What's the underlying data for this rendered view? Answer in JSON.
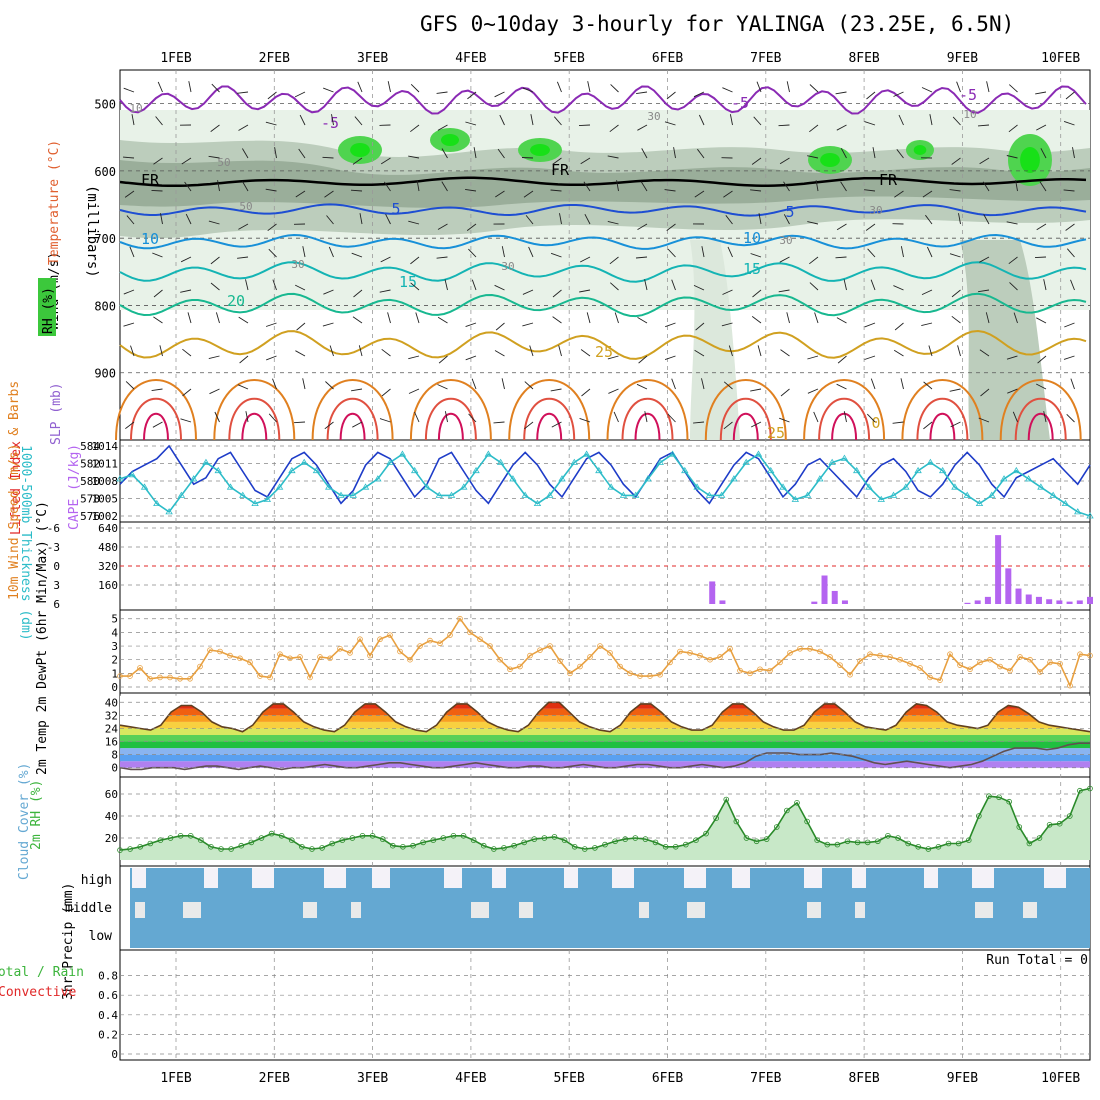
{
  "title": "GFS 0~10day 3-hourly for YALINGA (23.25E, 6.5N)",
  "date_labels": [
    "1FEB",
    "2FEB",
    "3FEB",
    "4FEB",
    "5FEB",
    "6FEB",
    "7FEB",
    "8FEB",
    "9FEB",
    "10FEB"
  ],
  "colors": {
    "rh": "#3cc83c",
    "t_warm": "#e08a1e",
    "t_cool": "#1e64d2",
    "t_cyan": "#14b4c8",
    "freeze": "#000000",
    "slp": "#1e3cc8",
    "thick": "#2cbcc8",
    "li": "#e02828",
    "cape": "#b464f0",
    "wind": "#e8a040",
    "cloud": "#64a8d2",
    "rh2m": "#3cb43c"
  },
  "chart_data": [
    {
      "type": "contour",
      "panel": "upper_air",
      "ylabel_parts": [
        "Wind (m/s)",
        "Temperature (°C)",
        "RH (%)",
        "(millibars)"
      ],
      "y_ticks": [
        500,
        600,
        700,
        800,
        900
      ],
      "ylim": [
        1000,
        450
      ],
      "temperature_contours": [
        -5,
        0,
        5,
        10,
        15,
        20,
        25
      ],
      "contour_labels": [
        "-5",
        "-5",
        "-5",
        "FR",
        "FR",
        "FR",
        "5",
        "5",
        "10",
        "10",
        "15",
        "15",
        "20",
        "25",
        "25",
        "0",
        "30",
        "30",
        "30",
        "30",
        "50",
        "50",
        "10",
        "10",
        "30"
      ],
      "rh_shading": [
        30,
        50,
        70,
        90
      ]
    },
    {
      "type": "line",
      "panel": "thickness_slp",
      "ylabel_left": "1000-500mb Thickness (dm)",
      "ylabel_right": "SLP (mb)",
      "thickness_ticks": [
        576,
        578,
        580,
        582,
        584
      ],
      "slp_ticks": [
        1002,
        1005,
        1008,
        1011,
        1014
      ],
      "series": [
        {
          "name": "SLP",
          "values": [
            1008,
            1010,
            1011,
            1012,
            1014,
            1011,
            1008,
            1009,
            1012,
            1013,
            1010,
            1007,
            1006,
            1009,
            1012,
            1013,
            1011,
            1008,
            1005,
            1007,
            1011,
            1013,
            1012,
            1009,
            1006,
            1008,
            1012,
            1013,
            1010,
            1007,
            1005,
            1008,
            1011,
            1013,
            1011,
            1008,
            1006,
            1009,
            1012,
            1013,
            1011,
            1008,
            1006,
            1009,
            1012,
            1013,
            1010,
            1007,
            1005,
            1008,
            1011,
            1013,
            1012,
            1009,
            1006,
            1008,
            1011,
            1012,
            1010,
            1008,
            1006,
            1009,
            1011,
            1012,
            1010,
            1007,
            1006,
            1008,
            1011,
            1013,
            1011,
            1008,
            1006,
            1009,
            1010,
            1011,
            1012,
            1010,
            1008,
            1011
          ]
        },
        {
          "name": "Thickness",
          "values": [
            580,
            580.5,
            579,
            577,
            576,
            578,
            580,
            582,
            581,
            579,
            578,
            577,
            577.5,
            579,
            581,
            582,
            581,
            579,
            578,
            578,
            579,
            580,
            582,
            583,
            581,
            579,
            578,
            578,
            579,
            581,
            583,
            582,
            580,
            578,
            577,
            578,
            580,
            582,
            583,
            581,
            579,
            578,
            578,
            580,
            582,
            583,
            581,
            579,
            578,
            578,
            580,
            582,
            583,
            581,
            579,
            577.5,
            578,
            580,
            582,
            582.5,
            581,
            579,
            577.5,
            578,
            579,
            581,
            582,
            581,
            579,
            578,
            577,
            578,
            580,
            581,
            580,
            579,
            578,
            577,
            576,
            575.5
          ]
        }
      ]
    },
    {
      "type": "bar",
      "panel": "instability",
      "ylabel_left": "Lifted Index",
      "ylabel_right": "CAPE (J/kg)",
      "li_ticks": [
        "-6",
        "-3",
        "0",
        "3",
        "6"
      ],
      "cape_ticks": [
        160,
        320,
        480,
        640
      ],
      "cape_values": [
        0,
        0,
        0,
        0,
        0,
        0,
        0,
        0,
        0,
        0,
        0,
        0,
        0,
        0,
        0,
        0,
        0,
        0,
        0,
        0,
        0,
        0,
        0,
        0,
        0,
        0,
        0,
        0,
        0,
        0,
        0,
        0,
        0,
        0,
        0,
        0,
        0,
        0,
        0,
        0,
        0,
        0,
        0,
        0,
        0,
        0,
        0,
        0,
        0,
        0,
        0,
        0,
        0,
        0,
        0,
        0,
        0,
        0,
        190,
        30,
        0,
        0,
        0,
        0,
        0,
        0,
        0,
        0,
        20,
        240,
        110,
        30,
        0,
        0,
        0,
        0,
        0,
        0,
        0,
        0,
        0,
        0,
        0,
        10,
        30,
        60,
        580,
        300,
        130,
        80,
        60,
        40,
        30,
        20,
        30,
        60
      ]
    },
    {
      "type": "line",
      "panel": "wind10m",
      "ylabel": "10m Wind Speed (m/s) & Barbs",
      "y_ticks": [
        0,
        1,
        2,
        3,
        4,
        5
      ],
      "series": [
        {
          "name": "Speed",
          "values": [
            0.8,
            0.8,
            1.4,
            0.6,
            0.7,
            0.7,
            0.6,
            0.6,
            1.5,
            2.7,
            2.6,
            2.3,
            2.1,
            1.8,
            0.8,
            0.7,
            2.4,
            2.1,
            2.2,
            0.7,
            2.2,
            2.1,
            2.8,
            2.5,
            3.5,
            2.3,
            3.5,
            3.8,
            2.6,
            2.0,
            3.0,
            3.4,
            3.2,
            3.8,
            5.0,
            4.0,
            3.5,
            3.0,
            2.0,
            1.3,
            1.5,
            2.3,
            2.7,
            3.0,
            1.9,
            1.0,
            1.5,
            2.2,
            3.0,
            2.5,
            1.5,
            1.0,
            0.8,
            0.8,
            0.9,
            1.8,
            2.6,
            2.5,
            2.3,
            2.0,
            2.2,
            2.8,
            1.2,
            1.0,
            1.3,
            1.2,
            1.8,
            2.5,
            2.8,
            2.8,
            2.6,
            2.2,
            1.6,
            0.9,
            1.9,
            2.4,
            2.3,
            2.2,
            2.0,
            1.7,
            1.4,
            0.7,
            0.5,
            2.4,
            1.6,
            1.3,
            1.8,
            2.0,
            1.5,
            1.2,
            2.2,
            2.0,
            1.1,
            1.8,
            1.7,
            0.1,
            2.4,
            2.3
          ]
        }
      ]
    },
    {
      "type": "area",
      "panel": "temperature2m",
      "ylabel": "2m Temp 2m DewPt (6hr Min/Max) (°C)",
      "y_ticks": [
        0,
        8,
        16,
        24,
        32,
        40
      ],
      "series": [
        {
          "name": "2m Temp",
          "values": [
            26,
            25,
            24,
            23,
            26,
            34,
            38,
            38,
            34,
            28,
            25,
            24,
            22,
            26,
            34,
            39,
            39,
            34,
            28,
            25,
            23,
            22,
            26,
            34,
            39,
            39,
            34,
            28,
            25,
            23,
            22,
            26,
            34,
            39,
            39,
            34,
            28,
            25,
            23,
            22,
            26,
            34,
            40,
            40,
            34,
            28,
            25,
            23,
            22,
            26,
            34,
            39,
            39,
            34,
            28,
            25,
            23,
            23,
            26,
            34,
            39,
            39,
            34,
            28,
            25,
            23,
            23,
            26,
            34,
            39,
            39,
            34,
            28,
            25,
            24,
            23,
            26,
            34,
            39,
            38,
            34,
            28,
            26,
            25,
            24,
            26,
            34,
            38,
            37,
            33,
            28,
            26,
            25,
            24,
            23,
            22
          ]
        },
        {
          "name": "2m DewPt",
          "values": [
            0,
            -1,
            -1,
            0,
            0,
            0,
            -1,
            0,
            1,
            1,
            0,
            -1,
            0,
            1,
            0,
            -1,
            0,
            0,
            1,
            2,
            1,
            0,
            0,
            1,
            2,
            3,
            3,
            2,
            1,
            0,
            0,
            1,
            2,
            3,
            2,
            1,
            0,
            0,
            1,
            1,
            0,
            0,
            1,
            2,
            1,
            0,
            0,
            1,
            2,
            2,
            1,
            0,
            0,
            1,
            2,
            1,
            0,
            1,
            3,
            7,
            9,
            9,
            9,
            8,
            8,
            8,
            9,
            8,
            7,
            5,
            3,
            2,
            3,
            4,
            3,
            2,
            1,
            0,
            1,
            2,
            4,
            7,
            10,
            12,
            12,
            12,
            11,
            12,
            14,
            15,
            15
          ]
        }
      ]
    },
    {
      "type": "area",
      "panel": "rh2m",
      "ylabel": "2m RH (%)",
      "y_ticks": [
        20,
        40,
        60
      ],
      "series": [
        {
          "name": "2m RH",
          "values": [
            9,
            10,
            12,
            15,
            18,
            20,
            22,
            22,
            18,
            12,
            10,
            10,
            13,
            16,
            20,
            24,
            22,
            18,
            12,
            10,
            11,
            15,
            18,
            20,
            22,
            22,
            19,
            13,
            12,
            13,
            16,
            18,
            20,
            22,
            22,
            18,
            13,
            10,
            11,
            13,
            16,
            19,
            20,
            21,
            18,
            12,
            10,
            11,
            14,
            17,
            19,
            20,
            19,
            16,
            12,
            12,
            14,
            18,
            24,
            38,
            55,
            35,
            20,
            17,
            19,
            30,
            45,
            52,
            35,
            18,
            14,
            14,
            17,
            16,
            16,
            17,
            22,
            20,
            15,
            12,
            10,
            12,
            15,
            15,
            18,
            40,
            58,
            57,
            53,
            30,
            15,
            20,
            32,
            33,
            40,
            63,
            65
          ]
        }
      ]
    },
    {
      "type": "heatmap",
      "panel": "cloud_cover",
      "ylabel": "Cloud Cover (%)",
      "layers": [
        "high",
        "middle",
        "low"
      ]
    },
    {
      "type": "bar",
      "panel": "precip",
      "ylabel": "3hr Precip (mm)",
      "series_labels": [
        "Total / Rain",
        "Convective"
      ],
      "y_ticks": [
        0,
        0.2,
        0.4,
        0.6,
        0.8
      ],
      "ylim": [
        0,
        1
      ],
      "annotation": "Run Total = 0",
      "values": []
    }
  ]
}
